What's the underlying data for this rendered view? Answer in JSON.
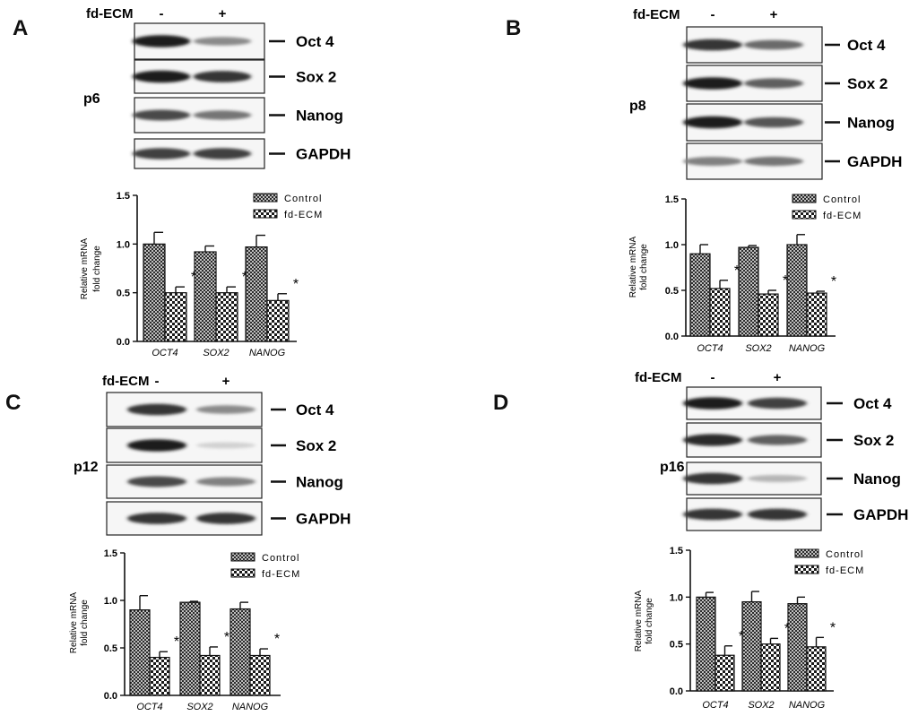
{
  "panels": [
    {
      "letter": "A",
      "passage": "p6",
      "condition_label": "fd-ECM",
      "lane_labels": [
        "-",
        "+"
      ],
      "blot_labels": [
        "Oct 4",
        "Sox 2",
        "Nanog",
        "GAPDH"
      ],
      "chart_data": {
        "type": "bar",
        "categories": [
          "OCT4",
          "SOX2",
          "NANOG"
        ],
        "series": [
          {
            "name": "Control",
            "values": [
              1.0,
              0.92,
              0.97
            ],
            "errors": [
              0.12,
              0.06,
              0.12
            ]
          },
          {
            "name": "fd-ECM",
            "values": [
              0.5,
              0.5,
              0.42
            ],
            "errors": [
              0.06,
              0.06,
              0.07
            ]
          }
        ],
        "ylabel_lines": [
          "Relative mRNA",
          "fold change"
        ],
        "ylim": [
          0,
          1.5
        ],
        "yticks": [
          "0.0",
          "0.5",
          "1.0",
          "1.5"
        ],
        "significance": [
          "*",
          "*",
          "*"
        ],
        "legend": "top-right",
        "grid": false
      }
    },
    {
      "letter": "B",
      "passage": "p8",
      "condition_label": "fd-ECM",
      "lane_labels": [
        "-",
        "+"
      ],
      "blot_labels": [
        "Oct 4",
        "Sox 2",
        "Nanog",
        "GAPDH"
      ],
      "chart_data": {
        "type": "bar",
        "categories": [
          "OCT4",
          "SOX2",
          "NANOG"
        ],
        "series": [
          {
            "name": "Control",
            "values": [
              0.9,
              0.97,
              1.0
            ],
            "errors": [
              0.1,
              0.02,
              0.11
            ]
          },
          {
            "name": "fd-ECM",
            "values": [
              0.52,
              0.46,
              0.47
            ],
            "errors": [
              0.09,
              0.04,
              0.02
            ]
          }
        ],
        "ylabel_lines": [
          "Relative mRNA",
          "fold change"
        ],
        "ylim": [
          0,
          1.5
        ],
        "yticks": [
          "0.0",
          "0.5",
          "1.0",
          "1.5"
        ],
        "significance": [
          "*",
          "*",
          "*"
        ],
        "legend": "top-right",
        "grid": false
      }
    },
    {
      "letter": "C",
      "passage": "p12",
      "condition_label": "fd-ECM",
      "lane_labels": [
        "-",
        "+"
      ],
      "blot_labels": [
        "Oct 4",
        "Sox 2",
        "Nanog",
        "GAPDH"
      ],
      "chart_data": {
        "type": "bar",
        "categories": [
          "OCT4",
          "SOX2",
          "NANOG"
        ],
        "series": [
          {
            "name": "Control",
            "values": [
              0.9,
              0.98,
              0.91
            ],
            "errors": [
              0.15,
              0.01,
              0.07
            ]
          },
          {
            "name": "fd-ECM",
            "values": [
              0.4,
              0.42,
              0.42
            ],
            "errors": [
              0.06,
              0.09,
              0.07
            ]
          }
        ],
        "ylabel_lines": [
          "Relative mRNA",
          "fold change"
        ],
        "ylim": [
          0,
          1.5
        ],
        "yticks": [
          "0.0",
          "0.5",
          "1.0",
          "1.5"
        ],
        "significance": [
          "*",
          "*",
          "*"
        ],
        "legend": "top-right",
        "grid": false
      }
    },
    {
      "letter": "D",
      "passage": "p16",
      "condition_label": "fd-ECM",
      "lane_labels": [
        "-",
        "+"
      ],
      "blot_labels": [
        "Oct 4",
        "Sox 2",
        "Nanog",
        "GAPDH"
      ],
      "chart_data": {
        "type": "bar",
        "categories": [
          "OCT4",
          "SOX2",
          "NANOG"
        ],
        "series": [
          {
            "name": "Control",
            "values": [
              1.0,
              0.95,
              0.93
            ],
            "errors": [
              0.05,
              0.11,
              0.07
            ]
          },
          {
            "name": "fd-ECM",
            "values": [
              0.38,
              0.5,
              0.47
            ],
            "errors": [
              0.1,
              0.06,
              0.1
            ]
          }
        ],
        "ylabel_lines": [
          "Relative mRNA",
          "fold change"
        ],
        "ylim": [
          0,
          1.5
        ],
        "yticks": [
          "0.0",
          "0.5",
          "1.0",
          "1.5"
        ],
        "significance": [
          "*",
          "*",
          "*"
        ],
        "legend": "top-right",
        "grid": false
      }
    }
  ]
}
